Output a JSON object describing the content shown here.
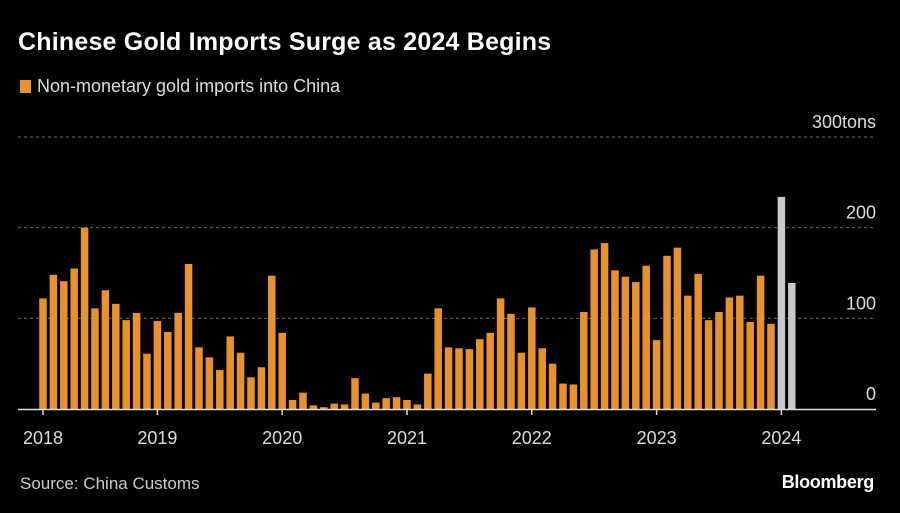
{
  "chart_data": {
    "type": "bar",
    "title": "Chinese Gold Imports Surge as 2024 Begins",
    "legend": [
      "Non-monetary gold imports into China"
    ],
    "legend_placement": "top-left",
    "ylabel": "tons",
    "ylim": [
      0,
      300
    ],
    "yticks": [
      {
        "value": 0,
        "label": "0"
      },
      {
        "value": 100,
        "label": "100"
      },
      {
        "value": 200,
        "label": "200"
      },
      {
        "value": 300,
        "label": "300tons"
      }
    ],
    "grid": true,
    "xticks": [
      {
        "index": 0,
        "label": "2018"
      },
      {
        "index": 11,
        "label": "2019"
      },
      {
        "index": 23,
        "label": "2020"
      },
      {
        "index": 35,
        "label": "2021"
      },
      {
        "index": 47,
        "label": "2022"
      },
      {
        "index": 59,
        "label": "2023"
      },
      {
        "index": 71,
        "label": "2024"
      }
    ],
    "values": [
      122,
      148,
      141,
      155,
      200,
      111,
      131,
      116,
      98,
      106,
      61,
      97,
      85,
      106,
      160,
      68,
      57,
      43,
      80,
      62,
      35,
      46,
      147,
      84,
      10,
      18,
      4,
      2,
      6,
      5,
      34,
      17,
      7,
      12,
      13,
      10,
      5,
      39,
      111,
      68,
      67,
      66,
      77,
      84,
      122,
      105,
      62,
      112,
      67,
      50,
      28,
      27,
      107,
      176,
      183,
      153,
      146,
      140,
      158,
      76,
      169,
      178,
      125,
      149,
      98,
      107,
      123,
      125,
      96,
      147,
      94,
      234,
      139
    ],
    "highlight_from_index": 71,
    "colors": {
      "bar": "#e8922c",
      "highlight": "#c9c9c9",
      "grid": "#666666",
      "axis": "#dddddd"
    }
  },
  "source": "Source: China Customs",
  "brand": "Bloomberg"
}
